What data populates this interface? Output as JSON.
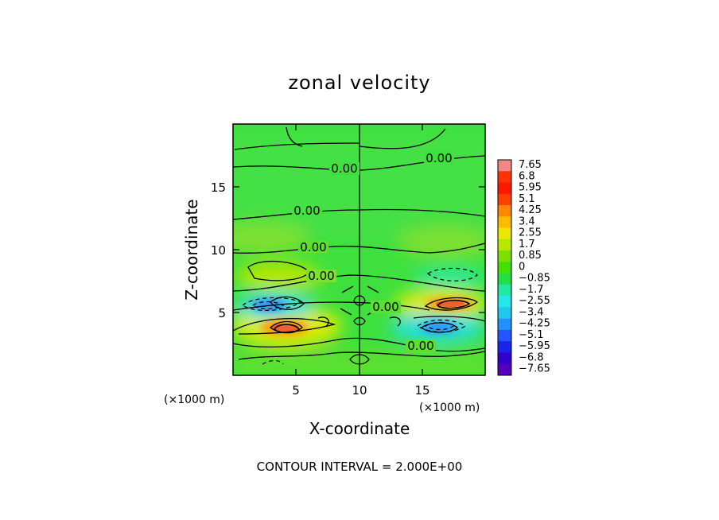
{
  "chart_data": {
    "type": "heatmap",
    "title": "zonal velocity",
    "xlabel": "X-coordinate",
    "ylabel": "Z-coordinate",
    "x_unit": "(×1000 m)",
    "y_unit": "(×1000 m)",
    "xlim": [
      0,
      20
    ],
    "ylim": [
      0,
      20
    ],
    "x_ticks": [
      "5",
      "10",
      "15"
    ],
    "y_ticks": [
      "5",
      "10",
      "15"
    ],
    "colorbar_levels": [
      "7.65",
      "6.8",
      "5.95",
      "5.1",
      "4.25",
      "3.4",
      "2.55",
      "1.7",
      "0.85",
      "0",
      "−0.85",
      "−1.7",
      "−2.55",
      "−3.4",
      "−4.25",
      "−5.1",
      "−5.95",
      "−6.8",
      "−7.65"
    ],
    "colorbar_colors": [
      "#f08888",
      "#ff3300",
      "#ff1800",
      "#ff4000",
      "#ff8800",
      "#ffbb00",
      "#e8e800",
      "#b8e800",
      "#7ce000",
      "#44e000",
      "#22e040",
      "#22e8a0",
      "#22e8e8",
      "#22c8f0",
      "#2290ff",
      "#2255ff",
      "#1a22f0",
      "#3300cc",
      "#5500bb"
    ],
    "contour_labels": [
      "0.00",
      "0.00",
      "0.00",
      "0.00",
      "0.00",
      "0.00",
      "0.00"
    ],
    "contour_interval_text": "CONTOUR INTERVAL = 2.000E+00",
    "features": [
      {
        "x": 3.8,
        "z": 4.0,
        "value": 5.0,
        "sign": "positive"
      },
      {
        "x": 17.0,
        "z": 5.5,
        "value": 5.0,
        "sign": "positive"
      },
      {
        "x": 2.5,
        "z": 5.8,
        "value": -4.0,
        "sign": "negative"
      },
      {
        "x": 15.8,
        "z": 3.8,
        "value": -4.0,
        "sign": "negative"
      },
      {
        "x": 3.5,
        "z": 8.2,
        "value": 1.5,
        "sign": "positive"
      },
      {
        "x": 17.0,
        "z": 8.2,
        "value": -1.0,
        "sign": "negative"
      }
    ]
  }
}
